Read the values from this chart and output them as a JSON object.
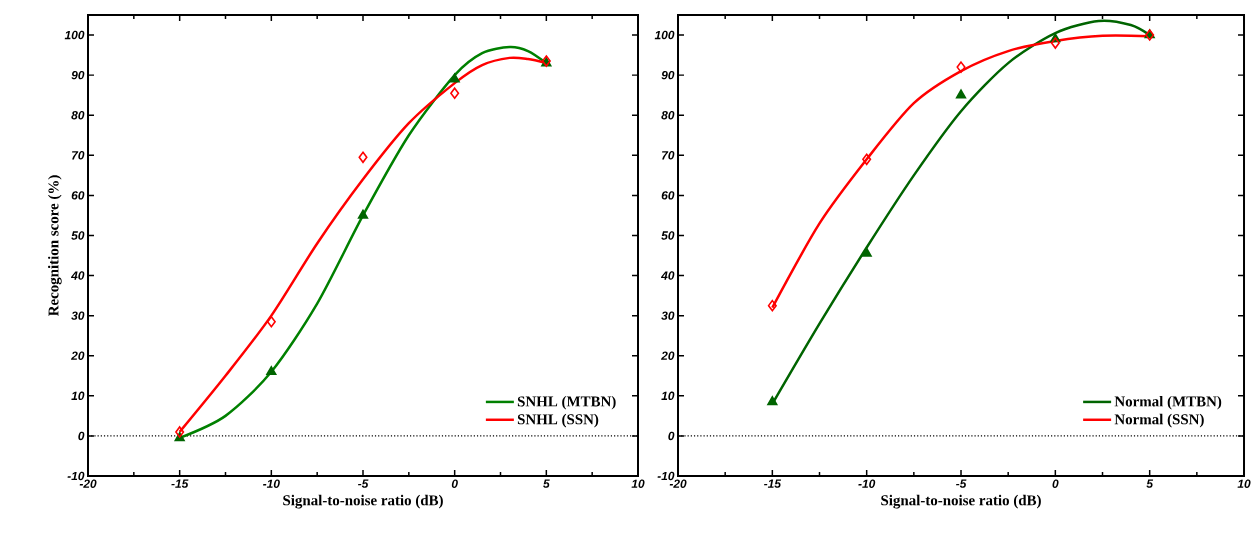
{
  "chart_data": [
    {
      "type": "line",
      "xlabel": "Signal-to-noise ratio (dB)",
      "ylabel": "Recognition score (%)",
      "xlim": [
        -20,
        10
      ],
      "ylim": [
        -10,
        105
      ],
      "xticks": [
        -20,
        -15,
        -10,
        -5,
        0,
        5,
        10
      ],
      "yticks": [
        -10,
        0,
        10,
        20,
        30,
        40,
        50,
        60,
        70,
        80,
        90,
        100
      ],
      "legend": "bottom right",
      "grid": false,
      "ref_lines": [
        {
          "axis": "y",
          "value": 0,
          "color": "#000000",
          "line_style": "dotted"
        }
      ],
      "series": [
        {
          "name": "SNHL (MTBN)",
          "type": "line",
          "color": "#008000",
          "marker": "none",
          "line_style": "solid",
          "x": [
            -15,
            -12.5,
            -10,
            -7.5,
            -5,
            -2.5,
            0,
            1.5,
            3,
            4,
            5
          ],
          "values": [
            -0.5,
            5,
            16,
            33,
            55,
            75,
            90,
            95.5,
            97,
            96,
            93
          ]
        },
        {
          "name": "SNHL (SSN)",
          "type": "line",
          "color": "#ff0000",
          "marker": "none",
          "line_style": "solid",
          "x": [
            -15,
            -12.5,
            -10,
            -7.5,
            -5,
            -2.5,
            0,
            1.5,
            3,
            4,
            5
          ],
          "values": [
            1,
            15,
            30,
            48,
            64,
            78,
            88,
            92.5,
            94.3,
            94,
            93
          ]
        },
        {
          "type": "scatter",
          "color": "#006400",
          "marker": "triangle",
          "x": [
            -15,
            -10,
            -5,
            0,
            5
          ],
          "values": [
            -0.5,
            16,
            55,
            89,
            93
          ]
        },
        {
          "type": "scatter",
          "color": "#ff0000",
          "marker": "diamond",
          "x": [
            -15,
            -10,
            -5,
            0,
            5
          ],
          "values": [
            1,
            28.5,
            69.5,
            85.5,
            93.5
          ]
        }
      ]
    },
    {
      "type": "line",
      "xlabel": "Signal-to-noise ratio (dB)",
      "xlim": [
        -20,
        10
      ],
      "ylim": [
        -10,
        105
      ],
      "xticks": [
        -20,
        -15,
        -10,
        -5,
        0,
        5,
        10
      ],
      "yticks": [
        -10,
        0,
        10,
        20,
        30,
        40,
        50,
        60,
        70,
        80,
        90,
        100
      ],
      "legend": "bottom right",
      "grid": false,
      "ref_lines": [
        {
          "axis": "y",
          "value": 0,
          "color": "#000000",
          "line_style": "dotted"
        }
      ],
      "series": [
        {
          "name": "Normal (MTBN)",
          "type": "line",
          "color": "#006400",
          "marker": "none",
          "line_style": "solid",
          "x": [
            -15,
            -12.5,
            -10,
            -7.5,
            -5,
            -2.5,
            0,
            2.3,
            4,
            5
          ],
          "values": [
            8,
            28,
            47,
            65,
            81,
            93,
            100.5,
            103.5,
            102.5,
            100
          ]
        },
        {
          "name": "Normal (SSN)",
          "type": "line",
          "color": "#ff0000",
          "marker": "none",
          "line_style": "solid",
          "x": [
            -15,
            -12.5,
            -10,
            -7.5,
            -5,
            -2.5,
            0,
            2.5,
            5
          ],
          "values": [
            32,
            53,
            69,
            83,
            91,
            96,
            98.5,
            99.8,
            99.7
          ]
        },
        {
          "type": "scatter",
          "color": "#006400",
          "marker": "triangle",
          "x": [
            -15,
            -10,
            -5,
            0,
            5
          ],
          "values": [
            8.5,
            45.5,
            85,
            99,
            100
          ]
        },
        {
          "type": "scatter",
          "color": "#ff0000",
          "marker": "diamond",
          "x": [
            -15,
            -10,
            -5,
            0,
            5
          ],
          "values": [
            32.5,
            69,
            92,
            98,
            100
          ]
        }
      ]
    }
  ]
}
